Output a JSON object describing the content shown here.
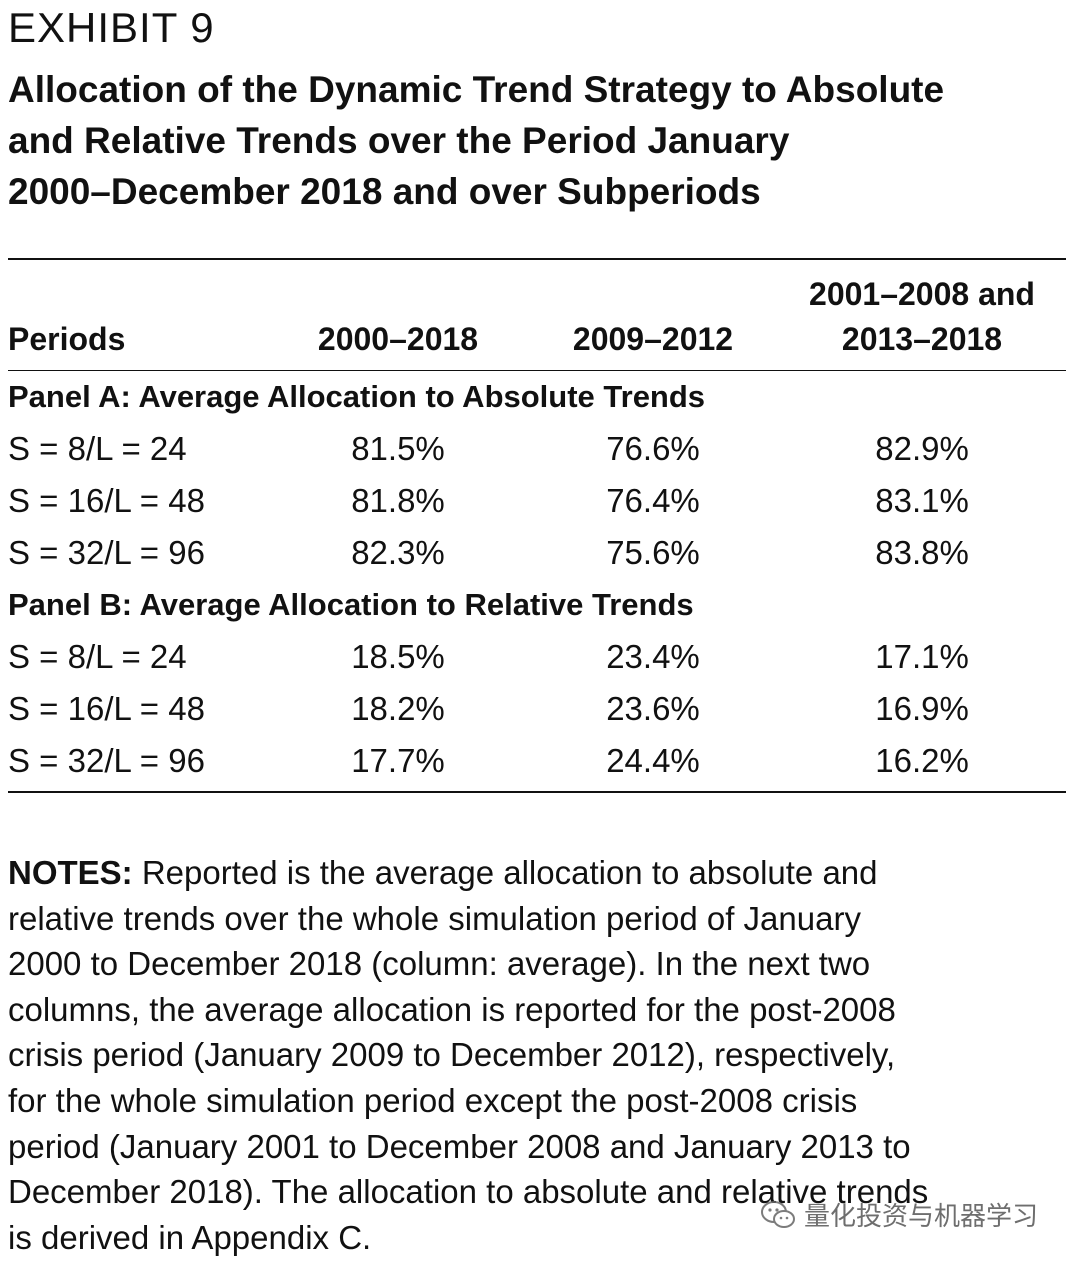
{
  "exhibit": {
    "label": "EXHIBIT 9",
    "title_lines": [
      "Allocation of the Dynamic Trend Strategy to Absolute",
      "and Relative Trends over the Period January",
      "2000–December 2018 and over Subperiods"
    ]
  },
  "table": {
    "headers": {
      "periods": "Periods",
      "col1": "2000–2018",
      "col2": "2009–2012",
      "col3_line1": "2001–2008 and",
      "col3_line2": "2013–2018"
    },
    "panels": [
      {
        "title": "Panel A: Average Allocation to Absolute Trends",
        "rows": [
          {
            "label": "S = 8/L = 24",
            "values": [
              "81.5%",
              "76.6%",
              "82.9%"
            ]
          },
          {
            "label": "S = 16/L = 48",
            "values": [
              "81.8%",
              "76.4%",
              "83.1%"
            ]
          },
          {
            "label": "S = 32/L = 96",
            "values": [
              "82.3%",
              "75.6%",
              "83.8%"
            ]
          }
        ]
      },
      {
        "title": "Panel B: Average Allocation to Relative Trends",
        "rows": [
          {
            "label": "S = 8/L = 24",
            "values": [
              "18.5%",
              "23.4%",
              "17.1%"
            ]
          },
          {
            "label": "S = 16/L = 48",
            "values": [
              "18.2%",
              "23.6%",
              "16.9%"
            ]
          },
          {
            "label": "S = 32/L = 96",
            "values": [
              "17.7%",
              "24.4%",
              "16.2%"
            ]
          }
        ]
      }
    ]
  },
  "notes": {
    "label": "NOTES:",
    "lines": [
      " Reported is the average allocation to absolute and",
      "relative trends over the whole simulation period of January",
      "2000 to December 2018 (column: average). In the next two",
      "columns, the average allocation is reported for the post-2008",
      "crisis period (January 2009 to December 2012), respectively,",
      "for the whole simulation period except the post-2008 crisis",
      "period (January 2001 to December 2008 and January 2013 to",
      "December 2018). The allocation to absolute and relative trends",
      "is derived in Appendix C."
    ]
  },
  "watermark": {
    "icon": "wechat-icon",
    "text": "量化投资与机器学习"
  }
}
